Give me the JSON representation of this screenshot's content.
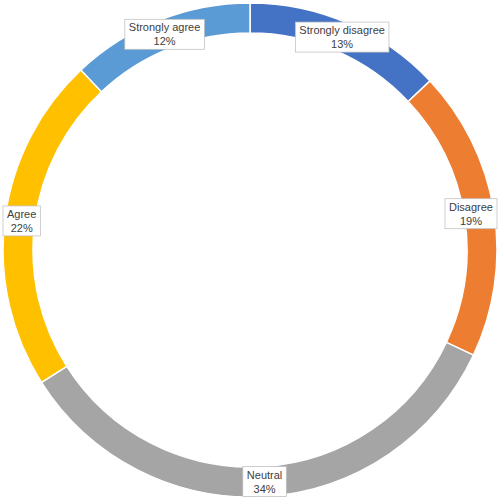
{
  "chart_data": {
    "type": "donut",
    "categories": [
      "Strongly disagree",
      "Disagree",
      "Neutral",
      "Agree",
      "Strongly agree"
    ],
    "values": [
      13,
      19,
      34,
      22,
      12
    ],
    "value_labels": [
      "13%",
      "19%",
      "34%",
      "22%",
      "12%"
    ],
    "colors": [
      "#4472c4",
      "#ed7d31",
      "#a5a5a5",
      "#ffc000",
      "#5b9bd5"
    ],
    "data_labels": true
  }
}
